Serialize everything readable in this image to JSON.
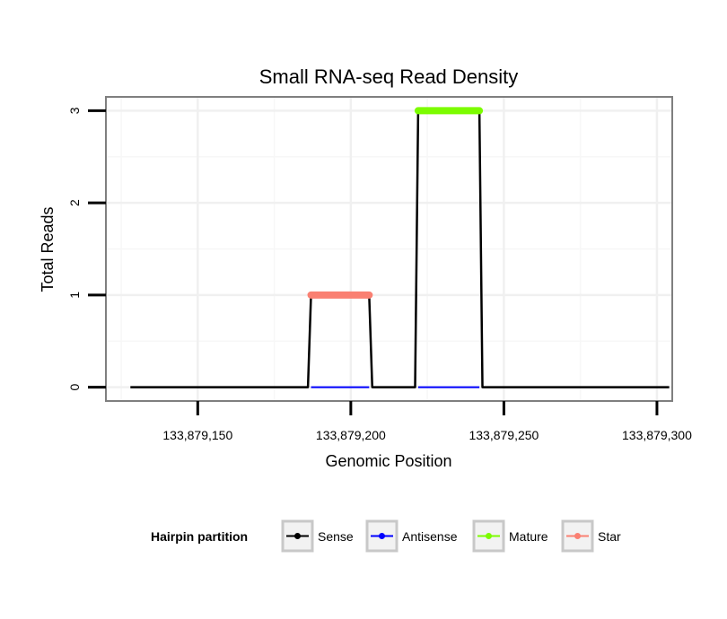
{
  "chart_data": {
    "type": "line",
    "title": "Small RNA-seq Read Density",
    "xlabel": "Genomic Position",
    "ylabel": "Total Reads",
    "xlim": [
      133879120,
      133879305
    ],
    "ylim": [
      -0.15,
      3.15
    ],
    "xticks": [
      133879150,
      133879200,
      133879250,
      133879300
    ],
    "xtick_labels": [
      "133,879,150",
      "133,879,200",
      "133,879,250",
      "133,879,300"
    ],
    "yticks": [
      0,
      1,
      2,
      3
    ],
    "ytick_labels": [
      "0",
      "1",
      "2",
      "3"
    ],
    "grid": true,
    "legend_position": "bottom",
    "legend_title": "Hairpin partition",
    "series": [
      {
        "name": "Sense",
        "color": "#000000",
        "x": [
          133879128,
          133879186,
          133879187,
          133879206,
          133879207,
          133879221,
          133879222,
          133879242,
          133879243,
          133879304
        ],
        "y": [
          0,
          0,
          1,
          1,
          0,
          0,
          3,
          3,
          0,
          0
        ]
      },
      {
        "name": "Antisense",
        "color": "#0000ff",
        "x": [
          133879187,
          133879206,
          133879222,
          133879242
        ],
        "y": [
          0,
          0,
          0,
          0
        ],
        "segments": [
          [
            0,
            1
          ],
          [
            2,
            3
          ]
        ]
      },
      {
        "name": "Mature",
        "color": "#7cfc00",
        "x": [
          133879222,
          133879242
        ],
        "y": [
          3,
          3
        ]
      },
      {
        "name": "Star",
        "color": "#fa8072",
        "x": [
          133879187,
          133879206
        ],
        "y": [
          1,
          1
        ]
      }
    ]
  }
}
